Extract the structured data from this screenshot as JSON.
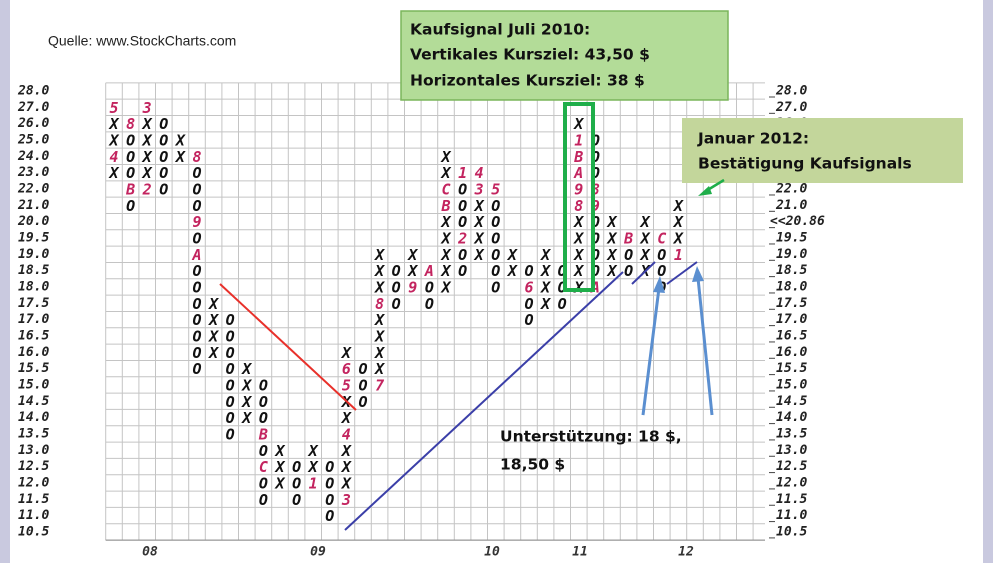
{
  "chart_data": {
    "type": "point-and-figure",
    "source": "Quelle: www.StockCharts.com",
    "yticks": [
      {
        "value": 28,
        "label": "28.0"
      },
      {
        "value": 27,
        "label": "27.0"
      },
      {
        "value": 26,
        "label": "26.0"
      },
      {
        "value": 25,
        "label": "25.0"
      },
      {
        "value": 24,
        "label": "24.0"
      },
      {
        "value": 23,
        "label": "23.0"
      },
      {
        "value": 22,
        "label": "22.0"
      },
      {
        "value": 21,
        "label": "21.0"
      },
      {
        "value": 20,
        "label": "20.0"
      },
      19.5,
      {
        "value": 19,
        "label": "19.0"
      },
      18.5,
      {
        "value": 18,
        "label": "18.0"
      },
      17.5,
      {
        "value": 17,
        "label": "17.0"
      },
      16.5,
      {
        "value": 16,
        "label": "16.0"
      },
      15.5,
      {
        "value": 15,
        "label": "15.0"
      },
      14.5,
      {
        "value": 14,
        "label": "14.0"
      },
      13.5,
      {
        "value": 13,
        "label": "13.0"
      },
      12.5,
      {
        "value": 12,
        "label": "12.0"
      },
      11.5,
      {
        "value": 11,
        "label": "11.0"
      },
      10.5
    ],
    "highlight_tick": 20,
    "highlight_color": "#c3245f",
    "mark_color": "#111111",
    "last_price": {
      "value": 20.86,
      "label": "<<20.86"
    },
    "years": [
      "08",
      "09",
      "10",
      "11",
      "12"
    ],
    "columns": [
      {
        "top": 27,
        "boxes": [
          "5",
          "X",
          "X",
          "4",
          "X"
        ]
      },
      {
        "top": 26,
        "boxes": [
          "8",
          "O",
          "O",
          "O",
          "B",
          "O"
        ]
      },
      {
        "top": 27,
        "boxes": [
          "3",
          "X",
          "X",
          "X",
          "X",
          "2"
        ]
      },
      {
        "top": 26,
        "boxes": [
          "O",
          "O",
          "O",
          "O",
          "O"
        ]
      },
      {
        "top": 25,
        "boxes": [
          "X",
          "X"
        ]
      },
      {
        "top": 24,
        "boxes": [
          "8",
          "O",
          "O",
          "O",
          "9",
          "O",
          "A",
          "O",
          "O",
          "O",
          "O",
          "O",
          "O",
          "O"
        ]
      },
      {
        "top": 17.5,
        "boxes": [
          "X",
          "X",
          "X",
          "X"
        ]
      },
      {
        "top": 17,
        "boxes": [
          "O",
          "O",
          "O",
          "O",
          "O",
          "O",
          "O",
          "O"
        ]
      },
      {
        "top": 15.5,
        "boxes": [
          "X",
          "X",
          "X",
          "X"
        ]
      },
      {
        "top": 15,
        "boxes": [
          "O",
          "O",
          "O",
          "B",
          "O",
          "C",
          "O",
          "O"
        ]
      },
      {
        "top": 13,
        "boxes": [
          "X",
          "X",
          "X"
        ]
      },
      {
        "top": 12.5,
        "boxes": [
          "O",
          "O",
          "O"
        ]
      },
      {
        "top": 13,
        "boxes": [
          "X",
          "X",
          "1"
        ]
      },
      {
        "top": 12.5,
        "boxes": [
          "O",
          "O",
          "O",
          "O"
        ]
      },
      {
        "top": 16,
        "boxes": [
          "X",
          "6",
          "5",
          "X",
          "X",
          "4",
          "X",
          "X",
          "X",
          "3"
        ]
      },
      {
        "top": 15.5,
        "boxes": [
          "O",
          "O",
          "O"
        ]
      },
      {
        "top": 19,
        "boxes": [
          "X",
          "X",
          "X",
          "8",
          "X",
          "X",
          "X",
          "X",
          "7"
        ]
      },
      {
        "top": 18.5,
        "boxes": [
          "O",
          "O",
          "O"
        ]
      },
      {
        "top": 19,
        "boxes": [
          "X",
          "X",
          "9"
        ]
      },
      {
        "top": 18.5,
        "boxes": [
          "A",
          "O",
          "O"
        ]
      },
      {
        "top": 24,
        "boxes": [
          "X",
          "X",
          "C",
          "B",
          "X",
          "X",
          "X",
          "X",
          "X"
        ]
      },
      {
        "top": 23,
        "boxes": [
          "1",
          "O",
          "O",
          "O",
          "2",
          "O",
          "O"
        ]
      },
      {
        "top": 23,
        "boxes": [
          "4",
          "3",
          "X",
          "X",
          "X",
          "X"
        ]
      },
      {
        "top": 22,
        "boxes": [
          "5",
          "O",
          "O",
          "O",
          "O",
          "O",
          "O"
        ]
      },
      {
        "top": 19,
        "boxes": [
          "X",
          "X"
        ]
      },
      {
        "top": 18.5,
        "boxes": [
          "O",
          "6",
          "O",
          "O"
        ]
      },
      {
        "top": 19,
        "boxes": [
          "X",
          "X",
          "X",
          "X"
        ]
      },
      {
        "top": 18.5,
        "boxes": [
          "O",
          "O",
          "O"
        ]
      },
      {
        "top": 26,
        "boxes": [
          "X",
          "1",
          "B",
          "A",
          "9",
          "8",
          "X",
          "X",
          "X",
          "X",
          "X"
        ]
      },
      {
        "top": 25,
        "boxes": [
          "O",
          "O",
          "O",
          "8",
          "9",
          "O",
          "O",
          "O",
          "O",
          "A"
        ]
      },
      {
        "top": 20,
        "boxes": [
          "X",
          "X",
          "X",
          "X"
        ]
      },
      {
        "top": 19.5,
        "boxes": [
          "B",
          "O",
          "O"
        ]
      },
      {
        "top": 20,
        "boxes": [
          "X",
          "X",
          "X",
          "X"
        ]
      },
      {
        "top": 19.5,
        "boxes": [
          "C",
          "O",
          "O",
          "O"
        ]
      },
      {
        "top": 21,
        "boxes": [
          "X",
          "X",
          "X",
          "1"
        ]
      }
    ],
    "annotations": {
      "signal": [
        "Kaufsignal Juli 2010:",
        "Vertikales Kursziel: 43,50 $",
        "Horizontales Kursziel: 38 $"
      ],
      "confirmation": [
        "Januar 2012:",
        "Bestätigung Kaufsignals"
      ],
      "support": [
        "Unterstützung: 18 $,",
        "18,50 $"
      ]
    }
  }
}
